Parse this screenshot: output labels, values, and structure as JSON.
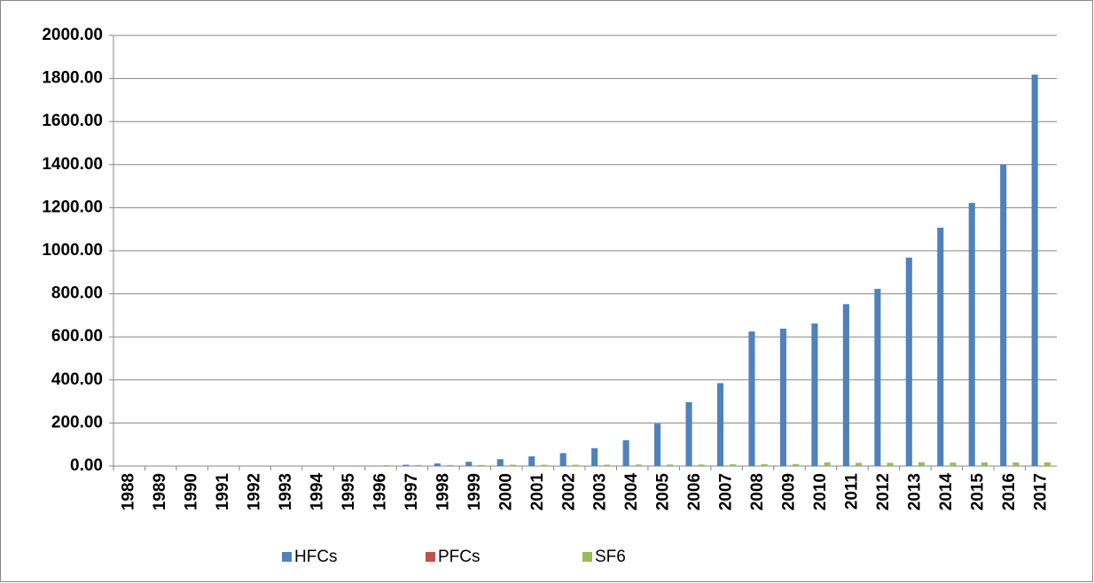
{
  "chart_data": {
    "type": "bar",
    "categories": [
      "1988",
      "1989",
      "1990",
      "1991",
      "1992",
      "1993",
      "1994",
      "1995",
      "1996",
      "1997",
      "1998",
      "1999",
      "2000",
      "2001",
      "2002",
      "2003",
      "2004",
      "2005",
      "2006",
      "2007",
      "2008",
      "2009",
      "2010",
      "2011",
      "2012",
      "2013",
      "2014",
      "2015",
      "2016",
      "2017"
    ],
    "series": [
      {
        "name": "HFCs",
        "color": "#4f81bd",
        "values": [
          0,
          0,
          0,
          0,
          0,
          0,
          0.5,
          1,
          2,
          6,
          12,
          20,
          32,
          45,
          60,
          83,
          120,
          197,
          297,
          385,
          625,
          638,
          662,
          752,
          823,
          968,
          1107,
          1222,
          1400,
          1818
        ]
      },
      {
        "name": "PFCs",
        "color": "#c0504d",
        "values": [
          0,
          0,
          0,
          0,
          0,
          0,
          0,
          0,
          0,
          0,
          0,
          0,
          0,
          0,
          0,
          0,
          0,
          0,
          0,
          0,
          0,
          0,
          0,
          0,
          0,
          0,
          0,
          0,
          0,
          0
        ]
      },
      {
        "name": "SF6",
        "color": "#9bbb59",
        "values": [
          0,
          0,
          0,
          0,
          0,
          0,
          0,
          3,
          4,
          5,
          5,
          5,
          6,
          6,
          6,
          6,
          7,
          7,
          7,
          8,
          9,
          9,
          17,
          15,
          15,
          18,
          16,
          17,
          17,
          17
        ]
      }
    ],
    "ylim": [
      0,
      2000
    ],
    "yticks": [
      {
        "value": 0,
        "label": "0.00"
      },
      {
        "value": 200,
        "label": "200.00"
      },
      {
        "value": 400,
        "label": "400.00"
      },
      {
        "value": 600,
        "label": "600.00"
      },
      {
        "value": 800,
        "label": "800.00"
      },
      {
        "value": 1000,
        "label": "1000.00"
      },
      {
        "value": 1200,
        "label": "1200.00"
      },
      {
        "value": 1400,
        "label": "1400.00"
      },
      {
        "value": 1600,
        "label": "1600.00"
      },
      {
        "value": 1800,
        "label": "1800.00"
      },
      {
        "value": 2000,
        "label": "2000.00"
      }
    ],
    "grid": true,
    "legend": "bottom"
  }
}
